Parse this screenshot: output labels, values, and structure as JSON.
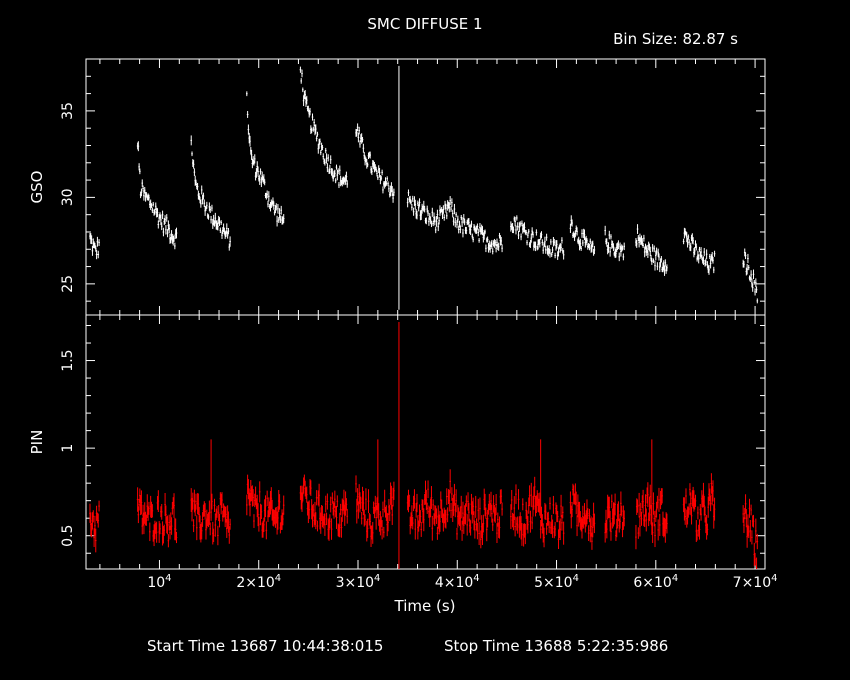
{
  "chart_data": {
    "type": "scatter",
    "title": "SMC DIFFUSE 1",
    "bin_size_label": "Bin Size:  82.87 s",
    "xlabel": "Time (s)",
    "xlim": [
      2600,
      71000
    ],
    "grid": false,
    "x_ticks": [
      {
        "value": 10000,
        "mantissa": "",
        "base": "10",
        "exp": "4"
      },
      {
        "value": 20000,
        "mantissa": "2×",
        "base": "10",
        "exp": "4"
      },
      {
        "value": 30000,
        "mantissa": "3×",
        "base": "10",
        "exp": "4"
      },
      {
        "value": 40000,
        "mantissa": "4×",
        "base": "10",
        "exp": "4"
      },
      {
        "value": 50000,
        "mantissa": "5×",
        "base": "10",
        "exp": "4"
      },
      {
        "value": 60000,
        "mantissa": "6×",
        "base": "10",
        "exp": "4"
      },
      {
        "value": 70000,
        "mantissa": "7×",
        "base": "10",
        "exp": "4"
      }
    ],
    "panels": [
      {
        "name": "GSO",
        "ylabel": "GSO",
        "ylim": [
          23.2,
          38.0
        ],
        "yticks": [
          25,
          30,
          35
        ],
        "ytick_labels": [
          "25",
          "30",
          "35"
        ],
        "color": "#ffffff",
        "segments": [
          {
            "x": [
              3000,
              3500,
              4000
            ],
            "y": [
              27.6,
              26.9,
              27.2
            ]
          },
          {
            "x": [
              7800,
              8100,
              8600,
              9200,
              9800,
              10400,
              10900,
              11300,
              11800
            ],
            "y": [
              33.2,
              30.5,
              30.0,
              29.6,
              29.0,
              28.5,
              28.2,
              27.8,
              27.6
            ]
          },
          {
            "x": [
              13200,
              13600,
              14000,
              14600,
              15200,
              15800,
              16300,
              16700,
              17200
            ],
            "y": [
              33.2,
              30.8,
              30.2,
              29.6,
              29.0,
              28.6,
              28.2,
              27.8,
              27.5
            ]
          },
          {
            "x": [
              18800,
              19200,
              19600,
              20100,
              20600,
              21100,
              21600,
              22100,
              22600
            ],
            "y": [
              35.5,
              32.4,
              31.8,
              31.3,
              30.6,
              29.8,
              29.3,
              28.9,
              28.5
            ]
          },
          {
            "x": [
              24200,
              24600,
              25000,
              25500,
              26000,
              26500,
              27000,
              27500,
              28000,
              28500,
              29000
            ],
            "y": [
              37.6,
              35.6,
              34.8,
              34.0,
              33.3,
              32.6,
              32.1,
              31.6,
              31.2,
              31.0,
              30.9
            ]
          },
          {
            "x": [
              29800,
              30200,
              30800,
              31400,
              32000,
              32600,
              33200,
              33700
            ],
            "y": [
              34.1,
              33.2,
              32.4,
              31.8,
              31.2,
              30.9,
              30.6,
              30.3
            ]
          },
          {
            "x": [
              34000,
              34250
            ],
            "y": [
              23.5,
              37.6
            ]
          },
          {
            "x": [
              35000,
              35600,
              36200,
              36800,
              37400,
              38000,
              38600,
              39200,
              39800,
              40400,
              41000,
              41600,
              42200,
              42800,
              43400,
              44000,
              44600
            ],
            "y": [
              29.9,
              29.5,
              29.3,
              29.0,
              28.7,
              28.6,
              28.9,
              29.5,
              28.8,
              28.4,
              28.2,
              28.0,
              27.8,
              27.6,
              27.4,
              27.3,
              27.5
            ]
          },
          {
            "x": [
              45400,
              46000,
              46600,
              47200,
              47800,
              48400,
              49000,
              49600,
              50200,
              50800
            ],
            "y": [
              28.8,
              28.4,
              28.1,
              27.8,
              27.6,
              27.4,
              27.2,
              27.0,
              26.9,
              27.2
            ]
          },
          {
            "x": [
              51400,
              51900,
              52400,
              52900,
              53400,
              53900
            ],
            "y": [
              28.6,
              28.0,
              27.6,
              27.3,
              27.0,
              26.8
            ]
          },
          {
            "x": [
              54900,
              55400,
              55900,
              56400,
              56900
            ],
            "y": [
              27.6,
              27.3,
              27.1,
              27.0,
              26.8
            ]
          },
          {
            "x": [
              58000,
              58400,
              58800,
              59200,
              59600,
              60000,
              60400,
              60800,
              61200
            ],
            "y": [
              27.9,
              27.5,
              27.2,
              26.9,
              26.7,
              26.5,
              26.3,
              26.2,
              26.4
            ]
          },
          {
            "x": [
              62800,
              63200,
              63600,
              64000,
              64400,
              64800,
              65200,
              65600,
              66000
            ],
            "y": [
              27.9,
              27.6,
              27.2,
              26.9,
              26.6,
              26.4,
              26.2,
              26.1,
              26.3
            ]
          },
          {
            "x": [
              68800,
              69200,
              69600,
              70000,
              70300
            ],
            "y": [
              26.6,
              26.1,
              25.6,
              24.8,
              24.0
            ]
          }
        ]
      },
      {
        "name": "PIN",
        "ylabel": "PIN",
        "ylim": [
          0.31,
          1.76
        ],
        "yticks": [
          0.5,
          1.0,
          1.5
        ],
        "ytick_labels": [
          "0.5",
          "1",
          "1.5"
        ],
        "color": "#ff0000",
        "segments": [
          {
            "x": [
              3000,
              3500,
              4000
            ],
            "y": [
              0.62,
              0.55,
              0.6
            ]
          },
          {
            "x": [
              7800,
              8100,
              8600,
              9200,
              9800,
              10400,
              10900,
              11300,
              11800
            ],
            "y": [
              0.68,
              0.63,
              0.6,
              0.58,
              0.62,
              0.6,
              0.57,
              0.63,
              0.55
            ]
          },
          {
            "x": [
              13200,
              13600,
              14000,
              14600,
              15200,
              15800,
              16300,
              16700,
              17200
            ],
            "y": [
              0.65,
              0.6,
              0.58,
              0.62,
              0.6,
              0.57,
              0.63,
              0.55,
              0.52
            ]
          },
          {
            "x": [
              18800,
              19200,
              19600,
              20100,
              20600,
              21100,
              21600,
              22100,
              22600
            ],
            "y": [
              0.75,
              0.7,
              0.62,
              0.66,
              0.6,
              0.63,
              0.58,
              0.65,
              0.62
            ]
          },
          {
            "x": [
              24200,
              24600,
              25000,
              25500,
              26000,
              26500,
              27000,
              27500,
              28000,
              28500,
              29000
            ],
            "y": [
              0.75,
              0.72,
              0.7,
              0.66,
              0.63,
              0.65,
              0.61,
              0.64,
              0.6,
              0.62,
              0.66
            ]
          },
          {
            "x": [
              29800,
              30200,
              30800,
              31400,
              32000,
              32600,
              33200,
              33700
            ],
            "y": [
              0.72,
              0.66,
              0.62,
              0.58,
              0.63,
              0.6,
              0.7,
              0.66
            ]
          },
          {
            "x": [
              34000,
              34250
            ],
            "y": [
              0.31,
              1.72
            ]
          },
          {
            "x": [
              35000,
              35600,
              36200,
              36800,
              37400,
              38000,
              38600,
              39200,
              39800,
              40400,
              41000,
              41600,
              42200,
              42800,
              43400,
              44000,
              44600
            ],
            "y": [
              0.6,
              0.62,
              0.58,
              0.7,
              0.64,
              0.6,
              0.66,
              0.74,
              0.62,
              0.58,
              0.64,
              0.6,
              0.56,
              0.62,
              0.66,
              0.6,
              0.64
            ]
          },
          {
            "x": [
              45400,
              46000,
              46600,
              47200,
              47800,
              48400,
              49000,
              49600,
              50200,
              50800
            ],
            "y": [
              0.62,
              0.66,
              0.58,
              0.64,
              0.7,
              0.6,
              0.58,
              0.62,
              0.55,
              0.6
            ]
          },
          {
            "x": [
              51400,
              51900,
              52400,
              52900,
              53400,
              53900
            ],
            "y": [
              0.7,
              0.64,
              0.6,
              0.66,
              0.58,
              0.55
            ]
          },
          {
            "x": [
              54900,
              55400,
              55900,
              56400,
              56900
            ],
            "y": [
              0.6,
              0.62,
              0.58,
              0.64,
              0.6
            ]
          },
          {
            "x": [
              58000,
              58400,
              58800,
              59200,
              59600,
              60000,
              60400,
              60800,
              61200
            ],
            "y": [
              0.58,
              0.64,
              0.62,
              0.7,
              0.6,
              0.58,
              0.66,
              0.62,
              0.55
            ]
          },
          {
            "x": [
              62800,
              63200,
              63600,
              64000,
              64400,
              64800,
              65200,
              65600,
              66000
            ],
            "y": [
              0.62,
              0.66,
              0.7,
              0.6,
              0.58,
              0.64,
              0.62,
              0.72,
              0.58
            ]
          },
          {
            "x": [
              68800,
              69200,
              69600,
              70000,
              70300
            ],
            "y": [
              0.62,
              0.58,
              0.55,
              0.45,
              0.38
            ]
          }
        ]
      }
    ]
  },
  "footer": {
    "start_label": "Start Time 13687 10:44:38:015",
    "stop_label": "Stop Time 13688  5:22:35:986"
  }
}
